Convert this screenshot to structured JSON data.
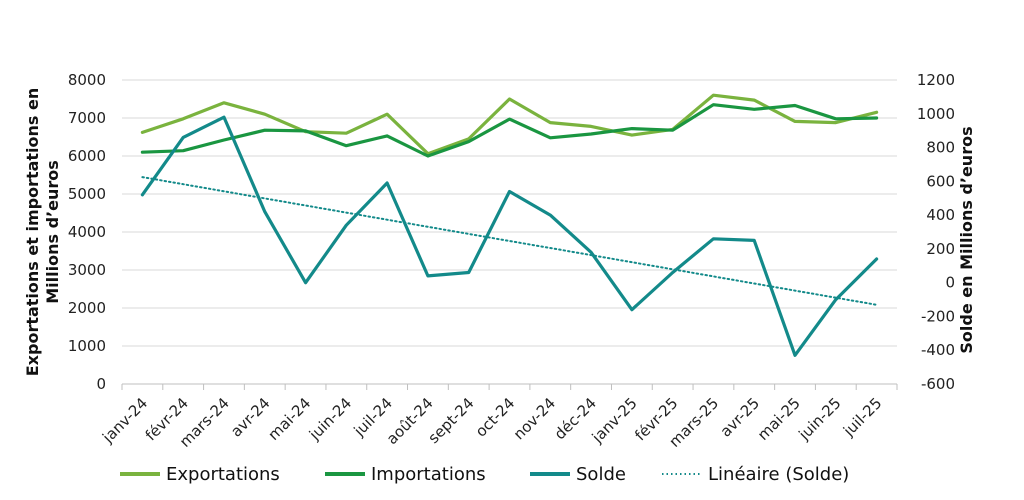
{
  "chart_data": {
    "type": "line",
    "categories": [
      "janv-24",
      "févr-24",
      "mars-24",
      "avr-24",
      "mai-24",
      "juin-24",
      "juil-24",
      "août-24",
      "sept-24",
      "oct-24",
      "nov-24",
      "déc-24",
      "janv-25",
      "févr-25",
      "mars-25",
      "avr-25",
      "mai-25",
      "juin-25",
      "juil-25"
    ],
    "ylabel": "Exportations et importations en Millions d’euros",
    "y2label": "Solde en Millions d’euros",
    "ylim": [
      0,
      8000
    ],
    "y2lim": [
      -600,
      1200
    ],
    "yticks": [
      0,
      1000,
      2000,
      3000,
      4000,
      5000,
      6000,
      7000,
      8000
    ],
    "y2ticks": [
      -600,
      -400,
      -200,
      0,
      200,
      400,
      600,
      800,
      1000,
      1200
    ],
    "grid": true,
    "legend_position": "bottom",
    "series": [
      {
        "name": "Exportations",
        "axis": "left",
        "color": "#7ab33e",
        "values": [
          6620,
          6980,
          7400,
          7100,
          6640,
          6600,
          7100,
          6060,
          6450,
          7500,
          6880,
          6780,
          6550,
          6700,
          7600,
          7470,
          6910,
          6880,
          7150
        ]
      },
      {
        "name": "Importations",
        "axis": "left",
        "color": "#1a9641",
        "values": [
          6100,
          6140,
          6420,
          6680,
          6660,
          6270,
          6530,
          6000,
          6380,
          6970,
          6480,
          6580,
          6720,
          6680,
          7350,
          7230,
          7330,
          6980,
          7000
        ]
      },
      {
        "name": "Solde",
        "axis": "right",
        "color": "#138a8a",
        "values": [
          520,
          860,
          980,
          420,
          0,
          340,
          590,
          40,
          60,
          540,
          400,
          180,
          -160,
          60,
          260,
          250,
          -430,
          -100,
          140
        ]
      },
      {
        "name": "Linéaire (Solde)",
        "axis": "right",
        "color": "#138a8a",
        "style": "dotted",
        "values": [
          625,
          583,
          541,
          499,
          457,
          415,
          373,
          331,
          289,
          247,
          205,
          163,
          121,
          79,
          37,
          -5,
          -47,
          -89,
          -131
        ]
      }
    ]
  }
}
